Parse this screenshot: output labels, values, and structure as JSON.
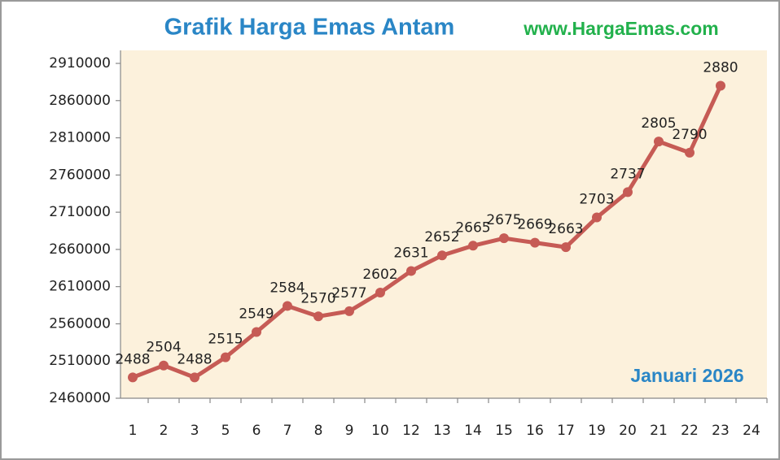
{
  "chart_data": {
    "type": "line",
    "title": "Grafik Harga Emas Antam",
    "source": "www.HargaEmas.com",
    "annotation": "Januari 2026",
    "categories": [
      "1",
      "2",
      "3",
      "5",
      "6",
      "7",
      "8",
      "9",
      "10",
      "12",
      "13",
      "14",
      "15",
      "16",
      "17",
      "19",
      "20",
      "21",
      "22",
      "23",
      "24"
    ],
    "values": [
      2488000,
      2504000,
      2488000,
      2515000,
      2549000,
      2584000,
      2570000,
      2577000,
      2602000,
      2631000,
      2652000,
      2665000,
      2675000,
      2669000,
      2663000,
      2703000,
      2737000,
      2805000,
      2790000,
      2880000,
      null
    ],
    "value_labels": [
      "2488",
      "2504",
      "2488",
      "2515",
      "2549",
      "2584",
      "2570",
      "2577",
      "2602",
      "2631",
      "2652",
      "2665",
      "2675",
      "2669",
      "2663",
      "2703",
      "2737",
      "2805",
      "2790",
      "2880",
      null
    ],
    "color": "#c65b55",
    "ylim": [
      2460000,
      2910000
    ],
    "yticks": [
      2460000,
      2510000,
      2560000,
      2610000,
      2660000,
      2710000,
      2760000,
      2810000,
      2860000,
      2910000
    ],
    "grid": false
  }
}
